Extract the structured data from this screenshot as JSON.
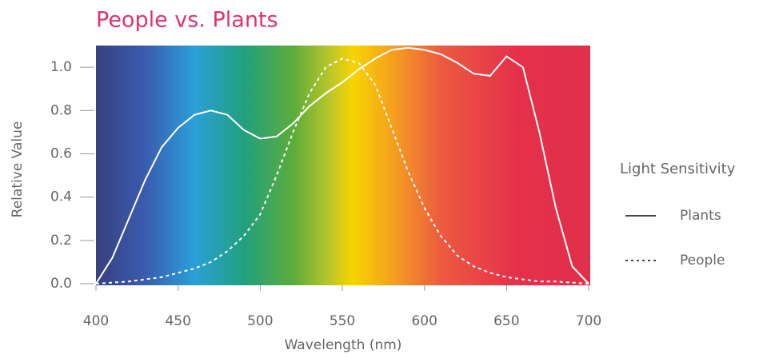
{
  "chart_data": {
    "type": "line",
    "title": "People vs. Plants",
    "x_label": "Wavelength (nm)",
    "y_label": "Relative Value",
    "x": [
      400,
      410,
      420,
      430,
      440,
      450,
      460,
      470,
      480,
      490,
      500,
      510,
      520,
      530,
      540,
      550,
      560,
      570,
      580,
      590,
      600,
      610,
      620,
      630,
      640,
      650,
      660,
      670,
      680,
      690,
      700
    ],
    "series": [
      {
        "name": "Plants",
        "color": "#ffffff",
        "dashed": false,
        "values": [
          0,
          0.12,
          0.3,
          0.48,
          0.63,
          0.72,
          0.78,
          0.8,
          0.78,
          0.71,
          0.67,
          0.68,
          0.74,
          0.82,
          0.88,
          0.93,
          0.99,
          1.04,
          1.08,
          1.09,
          1.08,
          1.06,
          1.02,
          0.97,
          0.96,
          1.05,
          1.0,
          0.7,
          0.35,
          0.08,
          0
        ]
      },
      {
        "name": "People",
        "color": "#ffffff",
        "dashed": true,
        "values": [
          0,
          0.005,
          0.01,
          0.02,
          0.03,
          0.05,
          0.07,
          0.1,
          0.15,
          0.22,
          0.32,
          0.5,
          0.7,
          0.88,
          1.0,
          1.04,
          1.02,
          0.92,
          0.72,
          0.52,
          0.35,
          0.22,
          0.13,
          0.08,
          0.05,
          0.03,
          0.02,
          0.01,
          0.01,
          0.005,
          0
        ]
      }
    ],
    "legend_title": "Light Sensitivity",
    "xlim": [
      400,
      700
    ],
    "xticks": [
      400,
      450,
      500,
      550,
      600,
      650,
      700
    ],
    "ylim": [
      0,
      1.1
    ],
    "yticks": [
      {
        "value": 0,
        "label": "0.0"
      },
      0.2,
      0.4,
      0.6,
      0.8,
      {
        "value": 1,
        "label": "1.0"
      }
    ]
  }
}
